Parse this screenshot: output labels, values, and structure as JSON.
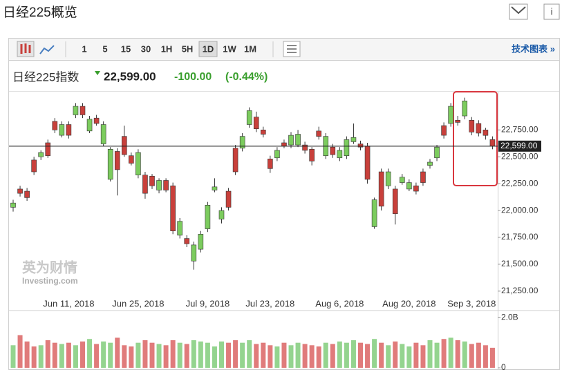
{
  "header": {
    "title": "日经225概览",
    "tech_link": "技术图表 »"
  },
  "toolbar": {
    "intervals": [
      "1",
      "5",
      "15",
      "30",
      "1H",
      "5H",
      "1D",
      "1W",
      "1M"
    ],
    "selected": 6
  },
  "quote": {
    "name": "日经225指数",
    "change": "-100.00",
    "change_pct": "(-0.44%)"
  },
  "watermark": {
    "cn": "英为财情",
    "en": "Investing.com"
  },
  "chart_data": {
    "type": "candlestick",
    "categories": [
      null,
      null,
      null,
      null,
      null,
      null,
      null,
      null,
      "Jun 11, 2018",
      null,
      null,
      null,
      null,
      null,
      null,
      null,
      null,
      null,
      "Jun 25, 2018",
      null,
      null,
      null,
      null,
      null,
      null,
      null,
      null,
      null,
      "Jul 9, 2018",
      null,
      null,
      null,
      null,
      null,
      null,
      null,
      null,
      "Jul 23, 2018",
      null,
      null,
      null,
      null,
      null,
      null,
      null,
      null,
      null,
      "Aug 6, 2018",
      null,
      null,
      null,
      null,
      null,
      null,
      null,
      null,
      null,
      "Aug 20, 2018",
      null,
      null,
      null,
      null,
      null,
      null,
      null,
      null,
      "Sep 3, 2018",
      null,
      null,
      null
    ],
    "open": [
      22030,
      22200,
      22180,
      22470,
      22500,
      22630,
      22830,
      22700,
      22800,
      22890,
      22970,
      22740,
      22860,
      22620,
      22290,
      22550,
      22690,
      22510,
      22330,
      22330,
      22320,
      22190,
      22280,
      22230,
      21770,
      21740,
      21530,
      21640,
      21830,
      22190,
      21920,
      22180,
      22580,
      22580,
      22800,
      22870,
      22750,
      22480,
      22490,
      22630,
      22610,
      22610,
      22610,
      22570,
      22740,
      22510,
      22590,
      22490,
      22510,
      22640,
      22620,
      22600,
      21850,
      22360,
      22230,
      22200,
      22260,
      22200,
      22230,
      22360,
      22420,
      22490,
      22790,
      22810,
      22840,
      22880,
      22840,
      22810,
      22750,
      22660
    ],
    "high": [
      22100,
      22230,
      22210,
      22500,
      22560,
      22660,
      22860,
      22830,
      22830,
      23000,
      23000,
      22880,
      22890,
      22830,
      22590,
      22580,
      22790,
      22540,
      22570,
      22360,
      22340,
      22300,
      22300,
      22260,
      21930,
      21770,
      21710,
      21810,
      22080,
      22300,
      22030,
      22210,
      22610,
      22720,
      22960,
      22920,
      22780,
      22510,
      22590,
      22660,
      22730,
      22750,
      22640,
      22590,
      22780,
      22720,
      22620,
      22590,
      22690,
      22810,
      22650,
      22630,
      22120,
      22390,
      22390,
      22230,
      22340,
      22290,
      22260,
      22390,
      22480,
      22610,
      22820,
      23000,
      22880,
      23050,
      22870,
      22840,
      22770,
      22690
    ],
    "low": [
      21990,
      22130,
      22090,
      22330,
      22470,
      22490,
      22720,
      22680,
      22670,
      22860,
      22860,
      22720,
      22790,
      22600,
      22270,
      22140,
      22500,
      22420,
      22300,
      22110,
      22200,
      22160,
      22170,
      21780,
      21740,
      21660,
      21450,
      21610,
      21800,
      22170,
      21880,
      22000,
      22330,
      22550,
      22770,
      22730,
      22680,
      22350,
      22460,
      22580,
      22580,
      22590,
      22530,
      22420,
      22660,
      22480,
      22490,
      22460,
      22480,
      22620,
      22560,
      22250,
      21830,
      22000,
      22200,
      21870,
      22240,
      22180,
      22150,
      22230,
      22390,
      22460,
      22670,
      22780,
      22790,
      22850,
      22700,
      22690,
      22660,
      22570
    ],
    "close": [
      22070,
      22160,
      22120,
      22360,
      22540,
      22510,
      22750,
      22800,
      22700,
      22970,
      22890,
      22850,
      22810,
      22800,
      22570,
      22380,
      22520,
      22440,
      22540,
      22160,
      22230,
      22280,
      22190,
      21810,
      21900,
      21690,
      21680,
      21780,
      22050,
      22220,
      22000,
      22030,
      22360,
      22690,
      22930,
      22760,
      22710,
      22390,
      22560,
      22600,
      22700,
      22710,
      22560,
      22460,
      22690,
      22690,
      22520,
      22560,
      22660,
      22680,
      22590,
      22290,
      22100,
      22040,
      22360,
      21970,
      22310,
      22260,
      22180,
      22260,
      22450,
      22590,
      22700,
      22970,
      22820,
      23020,
      22730,
      22720,
      22699,
      22599
    ],
    "volume": [
      900000000.0,
      1300000000.0,
      1050000000.0,
      850000000.0,
      900000000.0,
      1100000000.0,
      1000000000.0,
      950000000.0,
      1000000000.0,
      900000000.0,
      1050000000.0,
      1150000000.0,
      950000000.0,
      1050000000.0,
      1000000000.0,
      1200000000.0,
      900000000.0,
      850000000.0,
      1000000000.0,
      1100000000.0,
      1000000000.0,
      950000000.0,
      900000000.0,
      1100000000.0,
      1000000000.0,
      950000000.0,
      1100000000.0,
      1050000000.0,
      1000000000.0,
      850000000.0,
      1050000000.0,
      1000000000.0,
      1100000000.0,
      1000000000.0,
      1100000000.0,
      950000000.0,
      1000000000.0,
      900000000.0,
      850000000.0,
      1000000000.0,
      900000000.0,
      1000000000.0,
      950000000.0,
      900000000.0,
      850000000.0,
      1000000000.0,
      950000000.0,
      1050000000.0,
      1000000000.0,
      1100000000.0,
      1000000000.0,
      950000000.0,
      1150000000.0,
      1000000000.0,
      900000000.0,
      1050000000.0,
      950000000.0,
      850000000.0,
      1000000000.0,
      900000000.0,
      1100000000.0,
      1000000000.0,
      1150000000.0,
      1200000000.0,
      1100000000.0,
      1050000000.0,
      950000000.0,
      1000000000.0,
      900000000.0,
      800000000.0
    ],
    "up_color": "#7ccc5e",
    "down_color": "#c8403b",
    "vol_up_color": "#94d48f",
    "vol_down_color": "#e07b7b",
    "ylim": [
      21185,
      23105
    ],
    "yticks": [
      {
        "value": 21250,
        "label": "21,250.00"
      },
      {
        "value": 21500,
        "label": "21,500.00"
      },
      {
        "value": 21750,
        "label": "21,750.00"
      },
      {
        "value": 22000,
        "label": "22,000.00"
      },
      {
        "value": 22250,
        "label": "22,250.00"
      },
      {
        "value": 22500,
        "label": "22,500.00"
      },
      {
        "value": 22750,
        "label": "22,750.00"
      }
    ],
    "hline": {
      "value": 22599,
      "label": "22,599.00"
    },
    "vlim": [
      0,
      2230000000.0
    ],
    "vticks": [
      {
        "value": 2000000000,
        "label": "2.0B"
      },
      0
    ]
  }
}
